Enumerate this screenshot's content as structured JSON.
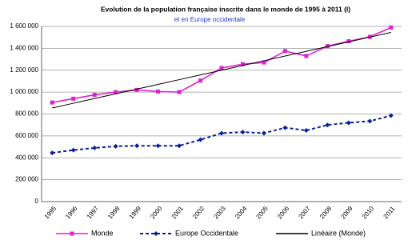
{
  "chart_data": {
    "type": "line",
    "title": "Evolution de la population française inscrite dans le monde de 1995 à 2011 (I)",
    "subtitle": "et en Europe occidentale",
    "categories": [
      "1995",
      "1996",
      "1997",
      "1998",
      "1999",
      "2000",
      "2001",
      "2002",
      "2003",
      "2004",
      "2005",
      "2006",
      "2007",
      "2008",
      "2009",
      "2010",
      "2011"
    ],
    "series": [
      {
        "name": "Monde",
        "color": "#e020d0",
        "line_style": "solid",
        "marker": "square",
        "values": [
          905000,
          940000,
          975000,
          1000000,
          1020000,
          1005000,
          1000000,
          1105000,
          1220000,
          1255000,
          1270000,
          1375000,
          1330000,
          1420000,
          1465000,
          1505000,
          1590000
        ]
      },
      {
        "name": "Europe Occidentale",
        "color": "#0a1f9a",
        "line_style": "dashed",
        "marker": "diamond",
        "values": [
          445000,
          470000,
          490000,
          505000,
          510000,
          510000,
          510000,
          565000,
          625000,
          635000,
          625000,
          675000,
          650000,
          700000,
          720000,
          735000,
          785000
        ]
      },
      {
        "name": "Linéaire (Monde)",
        "color": "#000000",
        "line_style": "solid",
        "marker": "none",
        "values": [
          855000,
          898125,
          941250,
          984375,
          1027500,
          1070625,
          1113750,
          1156875,
          1200000,
          1243125,
          1286250,
          1329375,
          1372500,
          1415625,
          1458750,
          1501875,
          1545000
        ]
      }
    ],
    "ylim": [
      0,
      1600000
    ],
    "yticks": [
      0,
      {
        "value": 200000,
        "label": "200 000"
      },
      {
        "value": 400000,
        "label": "400 000"
      },
      {
        "value": 600000,
        "label": "600 000"
      },
      {
        "value": 800000,
        "label": "800 000"
      },
      {
        "value": 1000000,
        "label": "1 000 000"
      },
      {
        "value": 1200000,
        "label": "1 200 000"
      },
      {
        "value": 1400000,
        "label": "1 400 000"
      },
      {
        "value": 1600000,
        "label": "1 600 000"
      }
    ],
    "grid": true,
    "legend": "bottom"
  }
}
